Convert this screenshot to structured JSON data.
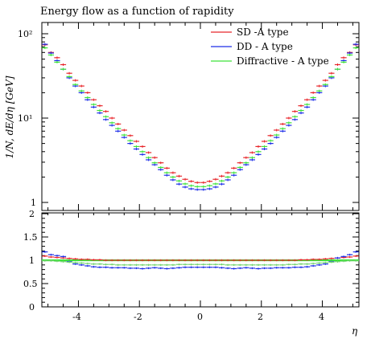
{
  "chart_data": [
    {
      "type": "line",
      "title": "Energy flow as a function of rapidity",
      "xlabel": "",
      "ylabel": "1/N, dE/dη [GeV]",
      "yscale": "log",
      "ylim": [
        1,
        130
      ],
      "xlim": [
        -5.2,
        5.2
      ],
      "ytick_labels": [
        "1",
        "10¹",
        "10²"
      ],
      "legend_position": "top-right",
      "series": [
        {
          "name": "SD -A type",
          "color": "#e8262b",
          "x": [
            -5.1,
            -4.9,
            -4.7,
            -4.5,
            -4.3,
            -4.1,
            -3.9,
            -3.7,
            -3.5,
            -3.3,
            -3.1,
            -2.9,
            -2.7,
            -2.5,
            -2.3,
            -2.1,
            -1.9,
            -1.7,
            -1.5,
            -1.3,
            -1.1,
            -0.9,
            -0.7,
            -0.5,
            -0.3,
            -0.1,
            0.1,
            0.3,
            0.5,
            0.7,
            0.9,
            1.1,
            1.3,
            1.5,
            1.7,
            1.9,
            2.1,
            2.3,
            2.5,
            2.7,
            2.9,
            3.1,
            3.3,
            3.5,
            3.7,
            3.9,
            4.1,
            4.3,
            4.5,
            4.7,
            4.9,
            5.1
          ],
          "y": [
            74,
            60,
            52,
            43,
            34,
            28,
            24,
            20,
            16.5,
            14,
            12,
            10,
            8.5,
            7.2,
            6.2,
            5.3,
            4.6,
            3.9,
            3.4,
            2.95,
            2.55,
            2.25,
            2.05,
            1.88,
            1.78,
            1.72,
            1.72,
            1.78,
            1.88,
            2.05,
            2.25,
            2.55,
            2.95,
            3.4,
            3.9,
            4.6,
            5.3,
            6.2,
            7.2,
            8.5,
            10,
            12,
            14,
            16.5,
            20,
            24,
            28,
            34,
            43,
            52,
            60,
            74
          ]
        },
        {
          "name": "DD - A type",
          "color": "#1d2ee8",
          "x": [
            -5.1,
            -4.9,
            -4.7,
            -4.5,
            -4.3,
            -4.1,
            -3.9,
            -3.7,
            -3.5,
            -3.3,
            -3.1,
            -2.9,
            -2.7,
            -2.5,
            -2.3,
            -2.1,
            -1.9,
            -1.7,
            -1.5,
            -1.3,
            -1.1,
            -0.9,
            -0.7,
            -0.5,
            -0.3,
            -0.1,
            0.1,
            0.3,
            0.5,
            0.7,
            0.9,
            1.1,
            1.3,
            1.5,
            1.7,
            1.9,
            2.1,
            2.3,
            2.5,
            2.7,
            2.9,
            3.1,
            3.3,
            3.5,
            3.7,
            3.9,
            4.1,
            4.3,
            4.5,
            4.7,
            4.9,
            5.1
          ],
          "y": [
            75,
            59,
            48,
            38,
            30,
            24,
            20,
            16.5,
            13.5,
            11.5,
            9.6,
            8.2,
            7,
            5.9,
            5,
            4.3,
            3.7,
            3.2,
            2.8,
            2.45,
            2.1,
            1.85,
            1.65,
            1.52,
            1.45,
            1.42,
            1.42,
            1.45,
            1.52,
            1.65,
            1.85,
            2.1,
            2.45,
            2.8,
            3.2,
            3.7,
            4.3,
            5,
            5.9,
            7,
            8.2,
            9.6,
            11.5,
            13.5,
            16.5,
            20,
            24,
            30,
            38,
            48,
            59,
            75
          ]
        },
        {
          "name": "Diffractive - A type",
          "color": "#3ee23a",
          "x": [
            -5.1,
            -4.9,
            -4.7,
            -4.5,
            -4.3,
            -4.1,
            -3.9,
            -3.7,
            -3.5,
            -3.3,
            -3.1,
            -2.9,
            -2.7,
            -2.5,
            -2.3,
            -2.1,
            -1.9,
            -1.7,
            -1.5,
            -1.3,
            -1.1,
            -0.9,
            -0.7,
            -0.5,
            -0.3,
            -0.1,
            0.1,
            0.3,
            0.5,
            0.7,
            0.9,
            1.1,
            1.3,
            1.5,
            1.7,
            1.9,
            2.1,
            2.3,
            2.5,
            2.7,
            2.9,
            3.1,
            3.3,
            3.5,
            3.7,
            3.9,
            4.1,
            4.3,
            4.5,
            4.7,
            4.9,
            5.1
          ],
          "y": [
            68,
            56,
            46,
            38,
            31,
            25,
            21,
            17.5,
            14.5,
            12.3,
            10.4,
            8.8,
            7.5,
            6.3,
            5.4,
            4.6,
            4,
            3.4,
            2.95,
            2.6,
            2.25,
            2,
            1.8,
            1.66,
            1.58,
            1.54,
            1.54,
            1.58,
            1.66,
            1.8,
            2,
            2.25,
            2.6,
            2.95,
            3.4,
            4,
            4.6,
            5.4,
            6.3,
            7.5,
            8.8,
            10.4,
            12.3,
            14.5,
            17.5,
            21,
            25,
            31,
            38,
            46,
            56,
            68
          ]
        }
      ]
    },
    {
      "type": "line",
      "title": "",
      "xlabel": "η",
      "ylabel": "",
      "ylim": [
        0,
        2
      ],
      "xlim": [
        -5.2,
        5.2
      ],
      "xtick_labels": [
        "-4",
        "-2",
        "0",
        "2",
        "4"
      ],
      "ytick_labels": [
        "0",
        "0.5",
        "1",
        "1.5",
        "2"
      ],
      "reference": {
        "y": 1,
        "color": "#3ee23a"
      },
      "series": [
        {
          "name": "",
          "color": "#e8262b",
          "x": [
            -5.1,
            -4.9,
            -4.7,
            -4.5,
            -4.3,
            -4.1,
            -3.9,
            -3.7,
            -3.5,
            -3.3,
            -3.1,
            -2.9,
            -2.7,
            -2.5,
            -2.3,
            -2.1,
            -1.9,
            -1.7,
            -1.5,
            -1.3,
            -1.1,
            -0.9,
            -0.7,
            -0.5,
            -0.3,
            -0.1,
            0.1,
            0.3,
            0.5,
            0.7,
            0.9,
            1.1,
            1.3,
            1.5,
            1.7,
            1.9,
            2.1,
            2.3,
            2.5,
            2.7,
            2.9,
            3.1,
            3.3,
            3.5,
            3.7,
            3.9,
            4.1,
            4.3,
            4.5,
            4.7,
            4.9,
            5.1
          ],
          "y": [
            1.09,
            1.07,
            1.06,
            1.05,
            1.04,
            1.03,
            1.02,
            1.02,
            1.01,
            1.01,
            1.0,
            1.0,
            1.0,
            1.0,
            1.0,
            1.0,
            1.0,
            1.0,
            1.0,
            1.0,
            1.0,
            1.0,
            1.0,
            1.0,
            1.0,
            1.0,
            1.0,
            1.0,
            1.0,
            1.0,
            1.0,
            1.0,
            1.0,
            1.0,
            1.0,
            1.0,
            1.0,
            1.0,
            1.0,
            1.0,
            1.0,
            1.0,
            1.01,
            1.01,
            1.02,
            1.02,
            1.03,
            1.04,
            1.05,
            1.06,
            1.07,
            1.09
          ]
        },
        {
          "name": "",
          "color": "#1d2ee8",
          "x": [
            -5.1,
            -4.9,
            -4.7,
            -4.5,
            -4.3,
            -4.1,
            -3.9,
            -3.7,
            -3.5,
            -3.3,
            -3.1,
            -2.9,
            -2.7,
            -2.5,
            -2.3,
            -2.1,
            -1.9,
            -1.7,
            -1.5,
            -1.3,
            -1.1,
            -0.9,
            -0.7,
            -0.5,
            -0.3,
            -0.1,
            0.1,
            0.3,
            0.5,
            0.7,
            0.9,
            1.1,
            1.3,
            1.5,
            1.7,
            1.9,
            2.1,
            2.3,
            2.5,
            2.7,
            2.9,
            3.1,
            3.3,
            3.5,
            3.7,
            3.9,
            4.1,
            4.3,
            4.5,
            4.7,
            4.9,
            5.1
          ],
          "y": [
            1.18,
            1.12,
            1.1,
            1.08,
            0.97,
            0.92,
            0.9,
            0.88,
            0.86,
            0.85,
            0.85,
            0.84,
            0.84,
            0.84,
            0.83,
            0.83,
            0.82,
            0.83,
            0.84,
            0.83,
            0.82,
            0.83,
            0.84,
            0.85,
            0.85,
            0.85,
            0.85,
            0.85,
            0.85,
            0.84,
            0.83,
            0.82,
            0.83,
            0.84,
            0.83,
            0.82,
            0.83,
            0.83,
            0.84,
            0.84,
            0.84,
            0.85,
            0.85,
            0.86,
            0.88,
            0.9,
            0.92,
            0.97,
            1.05,
            1.08,
            1.12,
            1.18
          ]
        },
        {
          "name": "",
          "color": "#6fd36c",
          "x": [
            -5.1,
            -4.9,
            -4.7,
            -4.5,
            -4.3,
            -4.1,
            -3.9,
            -3.7,
            -3.5,
            -3.3,
            -3.1,
            -2.9,
            -2.7,
            -2.5,
            -2.3,
            -2.1,
            -1.9,
            -1.7,
            -1.5,
            -1.3,
            -1.1,
            -0.9,
            -0.7,
            -0.5,
            -0.3,
            -0.1,
            0.1,
            0.3,
            0.5,
            0.7,
            0.9,
            1.1,
            1.3,
            1.5,
            1.7,
            1.9,
            2.1,
            2.3,
            2.5,
            2.7,
            2.9,
            3.1,
            3.3,
            3.5,
            3.7,
            3.9,
            4.1,
            4.3,
            4.5,
            4.7,
            4.9,
            5.1
          ],
          "y": [
            0.99,
            0.99,
            0.98,
            0.97,
            0.96,
            0.95,
            0.94,
            0.93,
            0.92,
            0.92,
            0.91,
            0.91,
            0.9,
            0.9,
            0.9,
            0.9,
            0.9,
            0.9,
            0.9,
            0.9,
            0.9,
            0.9,
            0.91,
            0.91,
            0.91,
            0.91,
            0.91,
            0.91,
            0.91,
            0.91,
            0.9,
            0.9,
            0.9,
            0.9,
            0.9,
            0.9,
            0.9,
            0.9,
            0.9,
            0.9,
            0.91,
            0.91,
            0.92,
            0.92,
            0.93,
            0.94,
            0.95,
            0.96,
            0.97,
            0.98,
            0.99,
            0.99
          ]
        }
      ]
    }
  ]
}
